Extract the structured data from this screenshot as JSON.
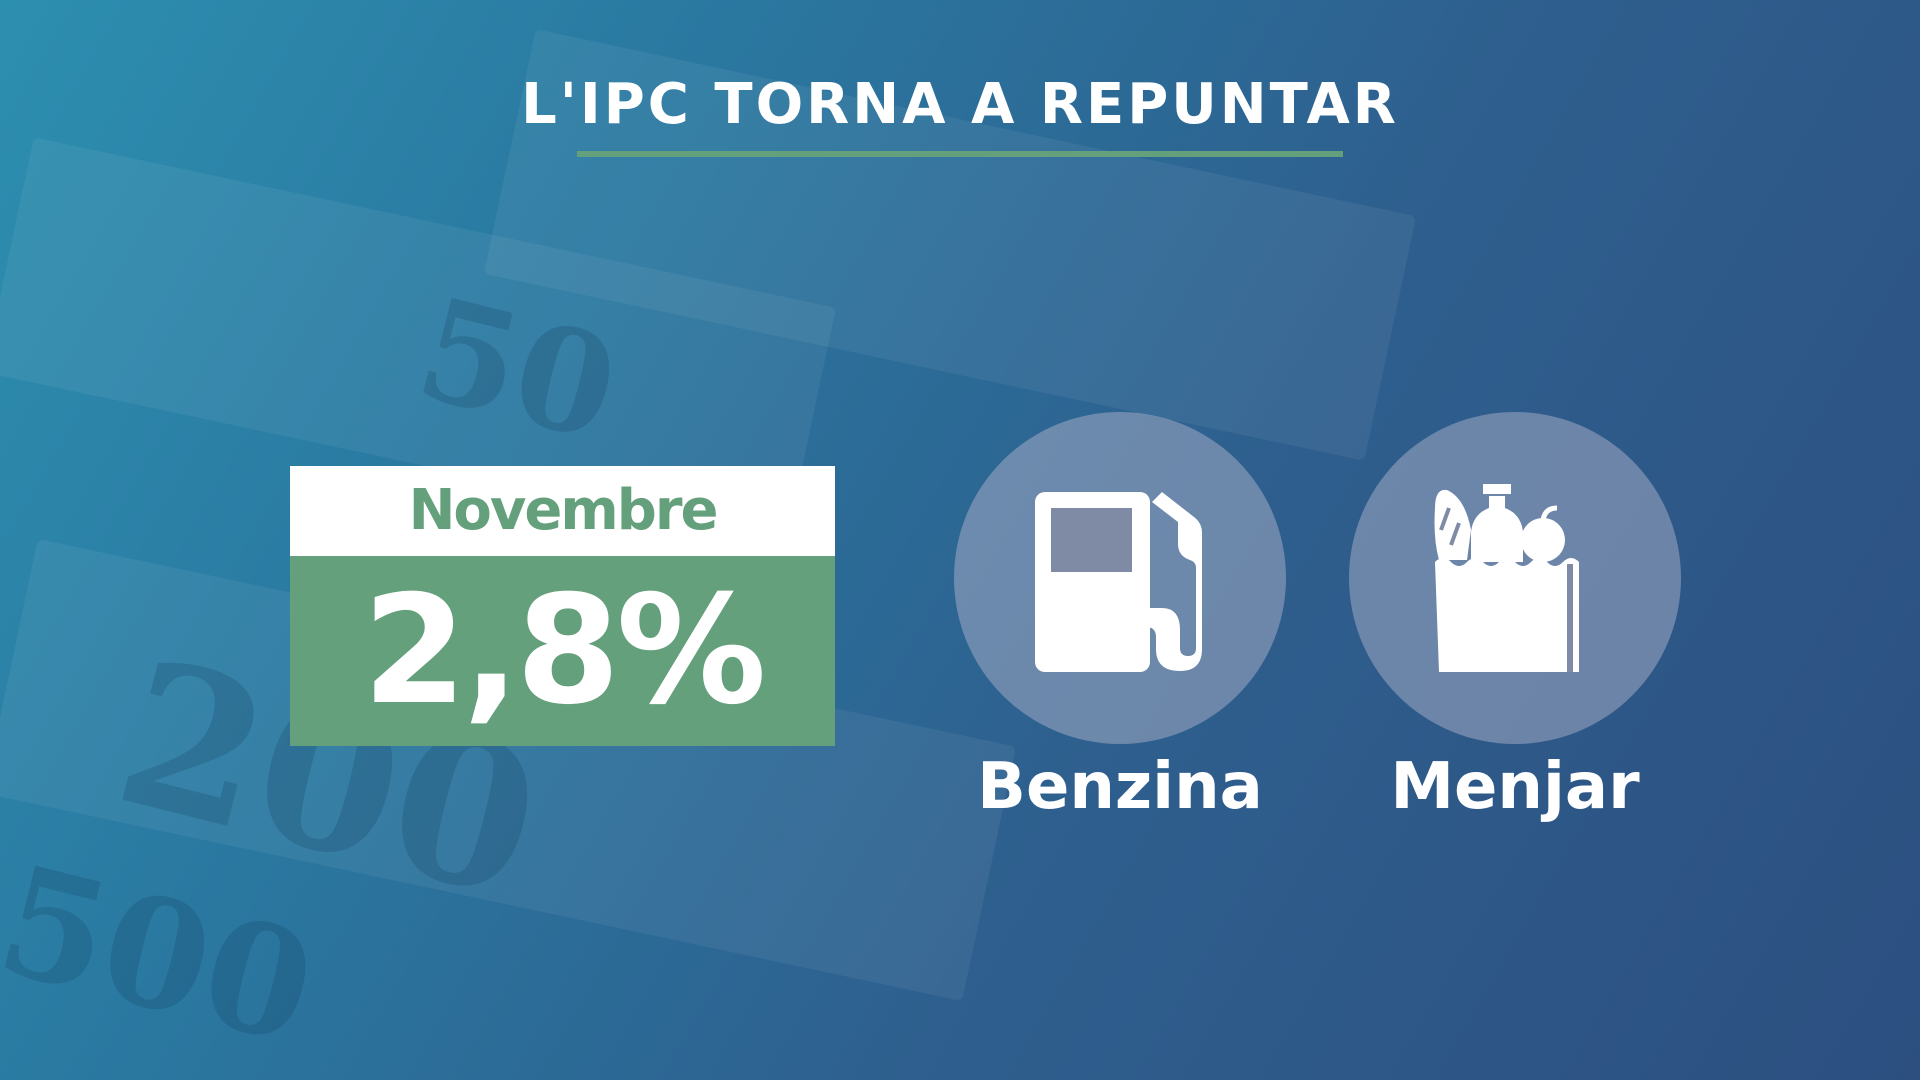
{
  "title": "L'IPC TORNA A REPUNTAR",
  "colors": {
    "accent": "#64a07b",
    "background": "#2e6a96"
  },
  "highlight": {
    "month": "Novembre",
    "value": "2,8%"
  },
  "items": [
    {
      "icon": "fuel-pump-icon",
      "label": "Benzina"
    },
    {
      "icon": "grocery-bag-icon",
      "label": "Menjar"
    }
  ]
}
